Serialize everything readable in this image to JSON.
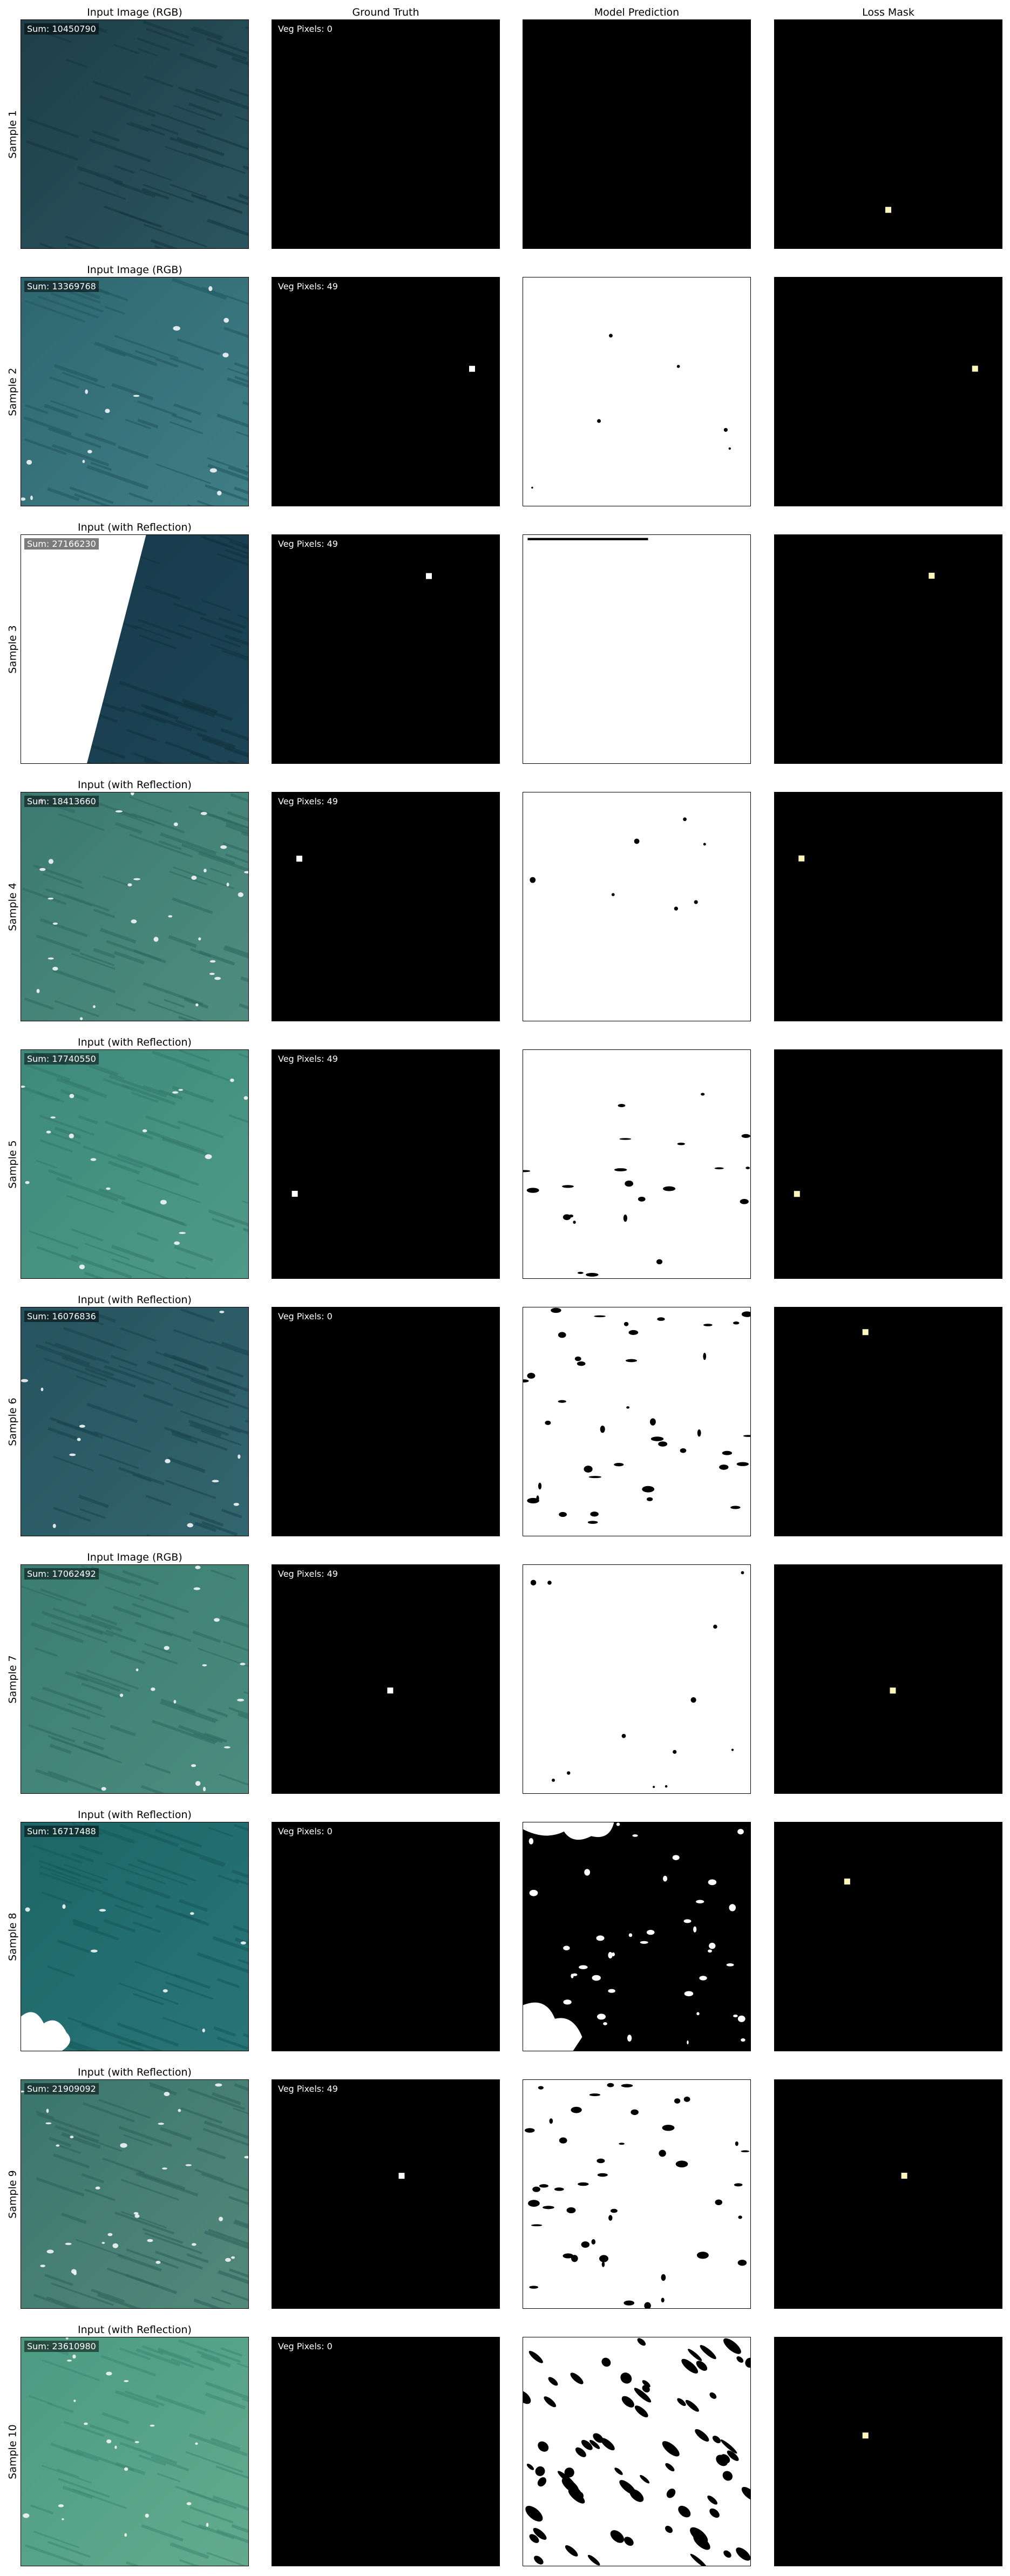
{
  "columns": {
    "gt": "Ground Truth",
    "pred": "Model Prediction",
    "loss": "Loss Mask"
  },
  "rows": [
    {
      "label": "Sample 1",
      "input_title": "Input Image (RGB)",
      "sum": "Sum: 10450790",
      "veg": "Veg Pixels: 0"
    },
    {
      "label": "Sample 2",
      "input_title": "Input Image (RGB)",
      "sum": "Sum: 13369768",
      "veg": "Veg Pixels: 49"
    },
    {
      "label": "Sample 3",
      "input_title": "Input (with Reflection)",
      "sum": "Sum: 27166230",
      "veg": "Veg Pixels: 49"
    },
    {
      "label": "Sample 4",
      "input_title": "Input (with Reflection)",
      "sum": "Sum: 18413660",
      "veg": "Veg Pixels: 49"
    },
    {
      "label": "Sample 5",
      "input_title": "Input (with Reflection)",
      "sum": "Sum: 17740550",
      "veg": "Veg Pixels: 49"
    },
    {
      "label": "Sample 6",
      "input_title": "Input (with Reflection)",
      "sum": "Sum: 16076836",
      "veg": "Veg Pixels: 0"
    },
    {
      "label": "Sample 7",
      "input_title": "Input Image (RGB)",
      "sum": "Sum: 17062492",
      "veg": "Veg Pixels: 49"
    },
    {
      "label": "Sample 8",
      "input_title": "Input (with Reflection)",
      "sum": "Sum: 16717488",
      "veg": "Veg Pixels: 0"
    },
    {
      "label": "Sample 9",
      "input_title": "Input (with Reflection)",
      "sum": "Sum: 21909092",
      "veg": "Veg Pixels: 49"
    },
    {
      "label": "Sample 10",
      "input_title": "Input (with Reflection)",
      "sum": "Sum: 23610980",
      "veg": "Veg Pixels: 0"
    }
  ],
  "colors": {
    "mask_bg": "#000000",
    "mask_fg": "#ffffff",
    "loss_marker": "#fcf6b8"
  }
}
